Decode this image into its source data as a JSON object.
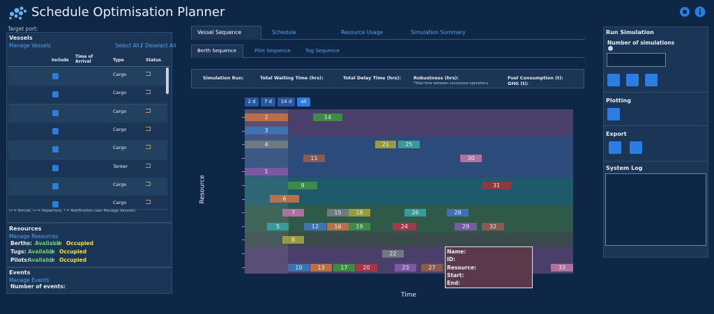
{
  "header": {
    "title": "Schedule Optimisation Planner"
  },
  "sidebar": {
    "target_port": "Target port:",
    "vessels": {
      "title": "Vessels",
      "manage": "Manage Vessels",
      "select_all": "Select All",
      "separator": "/",
      "deselect_all": "Deselect All",
      "columns": [
        "Include",
        "Time of Arrival",
        "Type",
        "Status"
      ],
      "rows": [
        {
          "type": "Cargo"
        },
        {
          "type": "Cargo"
        },
        {
          "type": "Cargo"
        },
        {
          "type": "Cargo"
        },
        {
          "type": "Cargo"
        },
        {
          "type": "Tanker"
        },
        {
          "type": "Cargo"
        },
        {
          "type": "Cargo"
        }
      ],
      "legend": "↦ = Arrival, ↦ = Departure, ! = Notification (see Manage Vessels)"
    },
    "resources": {
      "title": "Resources",
      "manage": "Manage Resources",
      "separator": "/",
      "rows": [
        {
          "label": "Berths:",
          "available": "Available",
          "occupied": "Occupied"
        },
        {
          "label": "Tugs:",
          "available": "Available",
          "occupied": "Occupied"
        },
        {
          "label": "Pilots:",
          "available": "Available",
          "occupied": "Occupied"
        }
      ]
    },
    "events": {
      "title": "Events",
      "manage": "Manage Events",
      "count_label": "Number of events:"
    }
  },
  "tabs": [
    "Vessel Sequence",
    "Schedule",
    "Resource Usage",
    "Simulation Summary"
  ],
  "subtabs": [
    "Berth Sequence",
    "Pilot Sequence",
    "Tug Sequence"
  ],
  "stats": [
    {
      "label": "Simulation Run:"
    },
    {
      "label": "Total Waiting Time (hrs):"
    },
    {
      "label": "Total Delay Time (hrs):"
    },
    {
      "label": "Robustness (hrs):",
      "note": "*Total time between successive operations"
    },
    {
      "label": "Fuel Consumption (t):",
      "label2": "GHG (t):"
    }
  ],
  "gantt": {
    "ranges": [
      "2 d",
      "7 d",
      "14 d",
      "all"
    ],
    "y_label": "Resource",
    "x_label": "Time",
    "bars": [
      "2",
      "14",
      "3",
      "4",
      "21",
      "25",
      "11",
      "30",
      "1",
      "9",
      "31",
      "6",
      "7",
      "15",
      "18",
      "26",
      "28",
      "5",
      "12",
      "16",
      "19",
      "24",
      "29",
      "32",
      "8",
      "22",
      "10",
      "13",
      "17",
      "20",
      "23",
      "27",
      "33"
    ],
    "tooltip": [
      "Name:",
      "ID:",
      "Resource:",
      "Start:",
      "End:"
    ]
  },
  "controls": {
    "run_title": "Run Simulation",
    "num_label": "Number of simulations",
    "plotting": "Plotting",
    "export": "Export",
    "log": "System Log"
  }
}
